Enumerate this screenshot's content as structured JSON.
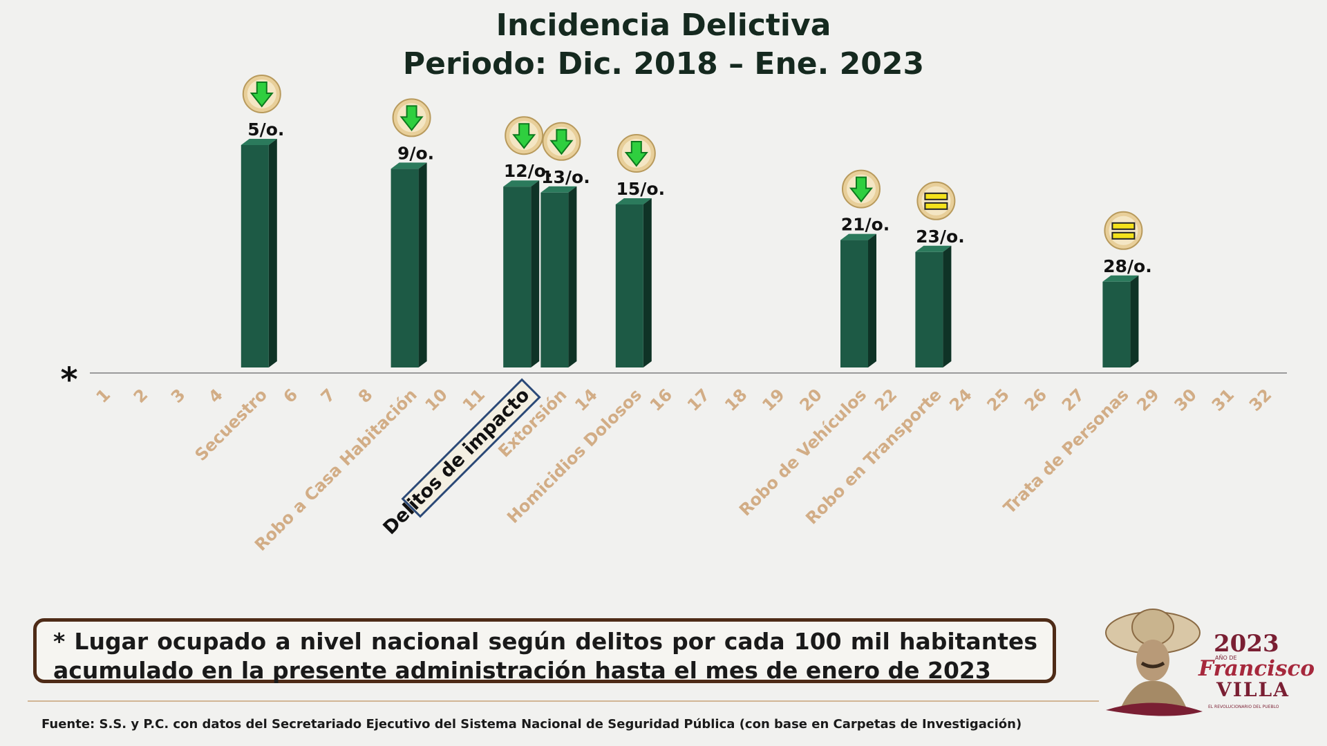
{
  "header": {
    "title_line1": "Incidencia Delictiva",
    "title_line2": "Periodo: Dic. 2018 – Ene. 2023"
  },
  "chart_data": {
    "type": "bar",
    "axis_marker": "*",
    "x_ticks": [
      "1",
      "2",
      "3",
      "4",
      "Secuestro",
      "6",
      "7",
      "8",
      "Robo a Casa Habitación",
      "10",
      "11",
      "Delitos de impacto",
      "Extorsión",
      "14",
      "Homicidios Dolosos",
      "16",
      "17",
      "18",
      "19",
      "20",
      "Robo de Vehículos",
      "22",
      "Robo en Transporte",
      "24",
      "25",
      "26",
      "27",
      "Trata de Personas",
      "29",
      "30",
      "31",
      "32"
    ],
    "highlight_label": "Delitos de impacto",
    "bars": [
      {
        "category": "Secuestro",
        "position": 5,
        "rank": 5,
        "label": "5/o.",
        "trend": "down"
      },
      {
        "category": "Robo a Casa Habitación",
        "position": 9,
        "rank": 9,
        "label": "9/o.",
        "trend": "down"
      },
      {
        "category": "Delitos de impacto",
        "position": 12,
        "rank": 12,
        "label": "12/o.",
        "trend": "down"
      },
      {
        "category": "Extorsión",
        "position": 13,
        "rank": 13,
        "label": "13/o.",
        "trend": "down"
      },
      {
        "category": "Homicidios Dolosos",
        "position": 15,
        "rank": 15,
        "label": "15/o.",
        "trend": "down"
      },
      {
        "category": "Robo de Vehículos",
        "position": 21,
        "rank": 21,
        "label": "21/o.",
        "trend": "down"
      },
      {
        "category": "Robo en Transporte",
        "position": 23,
        "rank": 23,
        "label": "23/o.",
        "trend": "equal"
      },
      {
        "category": "Trata de Personas",
        "position": 28,
        "rank": 28,
        "label": "28/o.",
        "trend": "equal"
      }
    ],
    "xlim": [
      1,
      32
    ],
    "grid": false,
    "colors": {
      "bar": "#1d5a45",
      "bar_side": "#0f3326",
      "bar_top": "#2b7a5c",
      "tick_text": "#d2ad86",
      "down_arrow": "#2fcf3f",
      "equal_icon": "#f4e21c",
      "badge": "#e8cf9a"
    }
  },
  "note": {
    "text": "* Lugar ocupado a nivel nacional según delitos por cada 100 mil habitantes acumulado en la presente administración hasta el mes de enero de 2023"
  },
  "footer": {
    "source": "Fuente: S.S. y P.C. con datos del Secretariado Ejecutivo del Sistema Nacional de Seguridad Pública (con base en Carpetas de Investigación)"
  },
  "logo": {
    "year": "2023",
    "year_caption": "AÑO DE",
    "name_line1": "Francisco",
    "name_line2": "VILLA",
    "tagline": "EL REVOLUCIONARIO DEL PUEBLO"
  }
}
